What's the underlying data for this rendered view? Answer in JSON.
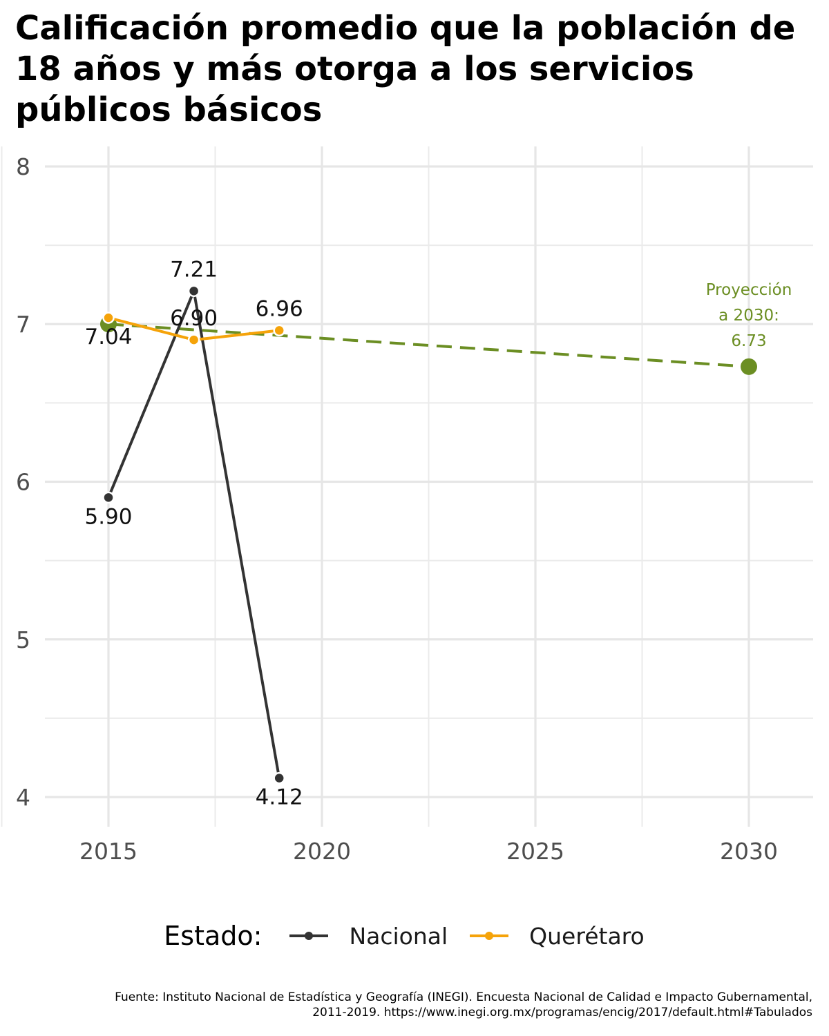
{
  "chart_data": {
    "type": "line",
    "title": "Calificación promedio que la población de 18 años y más otorga a los servicios públicos básicos",
    "xlabel": "",
    "ylabel": "",
    "xlim": [
      2013.5,
      2031.5
    ],
    "ylim": [
      3.8,
      8.1
    ],
    "x_ticks": [
      2015,
      2020,
      2025,
      2030
    ],
    "y_ticks": [
      4,
      5,
      6,
      7,
      8
    ],
    "grid": true,
    "series": [
      {
        "name": "Nacional",
        "color": "#333333",
        "points": [
          {
            "x": 2015,
            "y": 5.9,
            "label": "5.90",
            "label_pos": "below"
          },
          {
            "x": 2017,
            "y": 7.21,
            "label": "7.21",
            "label_pos": "above"
          },
          {
            "x": 2019,
            "y": 4.12,
            "label": "4.12",
            "label_pos": "below"
          }
        ]
      },
      {
        "name": "Querétaro",
        "color": "#F5A30A",
        "points": [
          {
            "x": 2015,
            "y": 7.04,
            "label": "7.04",
            "label_pos": "below"
          },
          {
            "x": 2017,
            "y": 6.9,
            "label": "6.90",
            "label_pos": "above"
          },
          {
            "x": 2019,
            "y": 6.96,
            "label": "6.96",
            "label_pos": "above"
          }
        ]
      }
    ],
    "projection": {
      "color": "#6B8E23",
      "start": {
        "x": 2015,
        "y": 7.0
      },
      "end": {
        "x": 2030,
        "y": 6.73
      },
      "annotation": [
        "Proyección",
        "a 2030:",
        "6.73"
      ]
    },
    "legend": {
      "title": "Estado:",
      "position": "bottom",
      "entries": [
        "Nacional",
        "Querétaro"
      ]
    },
    "caption": [
      "Fuente: Instituto Nacional de Estadística y Geografía (INEGI). Encuesta Nacional de Calidad e Impacto Gubernamental,",
      "2011-2019. https://www.inegi.org.mx/programas/encig/2017/default.html#Tabulados"
    ]
  }
}
